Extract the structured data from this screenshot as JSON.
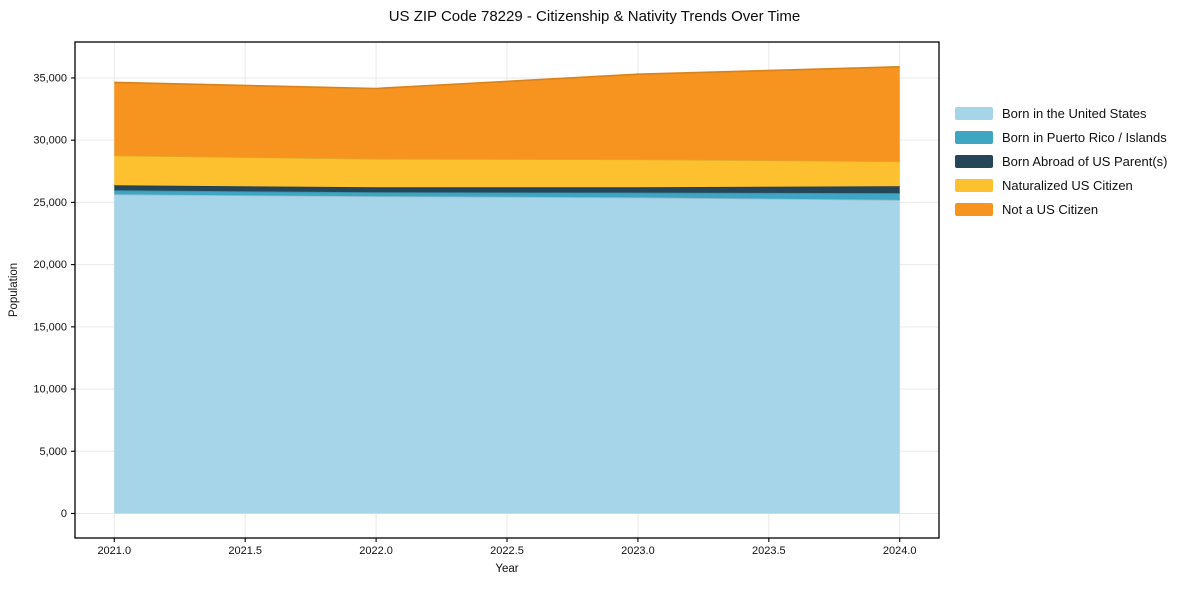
{
  "chart_data": {
    "type": "area",
    "stacked": true,
    "title": "US ZIP Code 78229 - Citizenship & Nativity Trends Over Time",
    "xlabel": "Year",
    "ylabel": "Population",
    "x": [
      2021,
      2022,
      2023,
      2024
    ],
    "series": [
      {
        "name": "Born in the United States",
        "color": "#a6d4e8",
        "values": [
          25650,
          25500,
          25400,
          25200
        ]
      },
      {
        "name": "Born in Puerto Rico / Islands",
        "color": "#3ea6c2",
        "values": [
          320,
          310,
          390,
          550
        ]
      },
      {
        "name": "Born Abroad of US Parent(s)",
        "color": "#254659",
        "values": [
          400,
          400,
          420,
          550
        ]
      },
      {
        "name": "Naturalized US Citizen",
        "color": "#fdc02f",
        "values": [
          2410,
          2290,
          2250,
          2000
        ]
      },
      {
        "name": "Not a US Citizen",
        "color": "#f7941f",
        "values": [
          5860,
          5650,
          6840,
          7600
        ]
      }
    ],
    "totals": [
      34640,
      34150,
      35300,
      35900
    ],
    "xlim": [
      2020.85,
      2024.15
    ],
    "ylim": [
      -1970,
      37890
    ],
    "xticks": {
      "values": [
        2021,
        2021.5,
        2022,
        2022.5,
        2023,
        2023.5,
        2024
      ],
      "labels": [
        "2021.0",
        "2021.5",
        "2022.0",
        "2022.5",
        "2023.0",
        "2023.5",
        "2024.0"
      ]
    },
    "yticks": {
      "values": [
        0,
        5000,
        10000,
        15000,
        20000,
        25000,
        30000,
        35000
      ],
      "labels": [
        "0",
        "5,000",
        "10,000",
        "15,000",
        "20,000",
        "25,000",
        "30,000",
        "35,000"
      ]
    },
    "grid": true,
    "grid_color": "#e9e9e9",
    "spine_color": "#000000",
    "text_color": "#111111",
    "legend_position": "right"
  }
}
